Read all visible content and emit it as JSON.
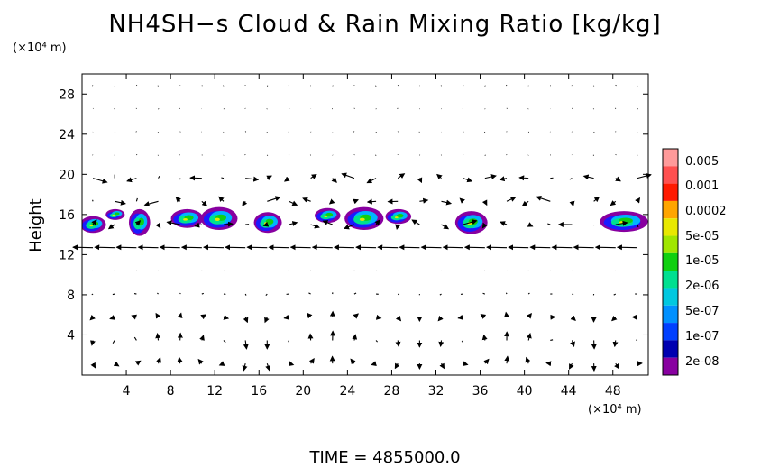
{
  "chart_data": {
    "type": "heatmap",
    "title": "NH4SH−s Cloud & Rain Mixing Ratio [kg/kg]",
    "ylabel": "Height",
    "x_unit": "(×10⁴ m)",
    "y_unit": "(×10⁴ m)",
    "x_ticks": [
      4,
      8,
      12,
      16,
      20,
      24,
      28,
      32,
      36,
      40,
      44,
      48
    ],
    "y_ticks": [
      4,
      8,
      12,
      16,
      20,
      24,
      28
    ],
    "xlim": [
      0,
      51.2
    ],
    "ylim": [
      0,
      30
    ],
    "colorbar": {
      "labels": [
        "0.005",
        "0.001",
        "0.0002",
        "5e-05",
        "1e-05",
        "2e-06",
        "5e-07",
        "1e-07",
        "2e-08"
      ],
      "colors": [
        "#ff9a9a",
        "#ff5050",
        "#ff1a00",
        "#ffa500",
        "#e8e800",
        "#a0e600",
        "#10d010",
        "#00e090",
        "#00c8e0",
        "#0090ff",
        "#0040ff",
        "#0000b0",
        "#8800a0"
      ]
    },
    "cloud_blobs": [
      {
        "x": 1.0,
        "y": 15.0,
        "w": 2.0,
        "h": 1.4
      },
      {
        "x": 3.0,
        "y": 16.0,
        "w": 1.4,
        "h": 0.8
      },
      {
        "x": 5.2,
        "y": 15.2,
        "w": 1.6,
        "h": 2.4
      },
      {
        "x": 9.5,
        "y": 15.6,
        "w": 2.6,
        "h": 1.6
      },
      {
        "x": 12.4,
        "y": 15.6,
        "w": 3.0,
        "h": 2.0
      },
      {
        "x": 16.8,
        "y": 15.2,
        "w": 2.2,
        "h": 1.8
      },
      {
        "x": 22.2,
        "y": 15.9,
        "w": 2.0,
        "h": 1.2
      },
      {
        "x": 25.5,
        "y": 15.6,
        "w": 3.2,
        "h": 2.0
      },
      {
        "x": 28.6,
        "y": 15.8,
        "w": 2.0,
        "h": 1.2
      },
      {
        "x": 35.2,
        "y": 15.2,
        "w": 2.6,
        "h": 2.0
      },
      {
        "x": 49.0,
        "y": 15.3,
        "w": 4.0,
        "h": 1.8
      }
    ]
  },
  "time_label": "TIME  =  4855000.0"
}
